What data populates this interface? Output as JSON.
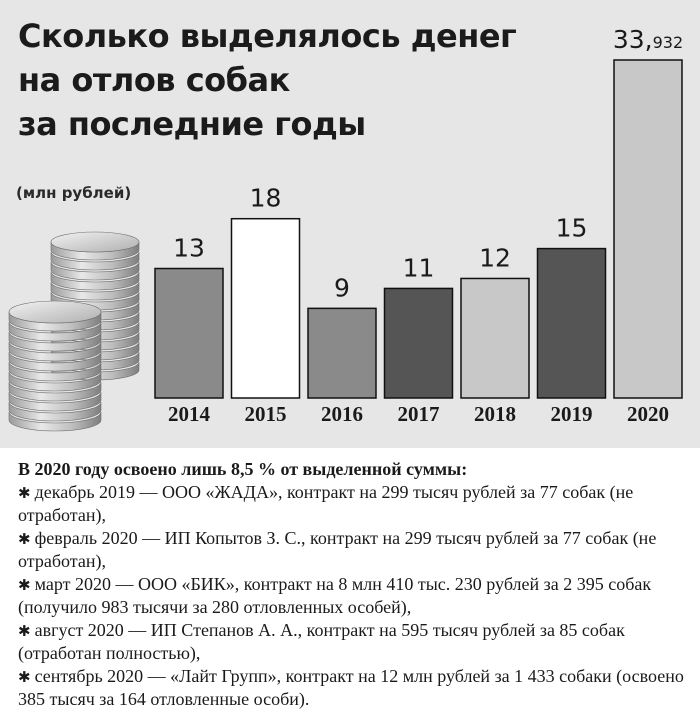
{
  "title_lines": [
    "Сколько выделялось денег",
    "на отлов собак",
    "за последние годы"
  ],
  "unit_label": "(млн рублей)",
  "chart_data": {
    "type": "bar",
    "title": "Сколько выделялось денег на отлов собак за последние годы",
    "ylabel": "(млн рублей)",
    "categories": [
      "2014",
      "2015",
      "2016",
      "2017",
      "2018",
      "2019",
      "2020"
    ],
    "values": [
      13,
      18,
      9,
      11,
      12,
      15,
      33.932
    ],
    "value_labels": [
      {
        "main": "13",
        "sub": ""
      },
      {
        "main": "18",
        "sub": ""
      },
      {
        "main": "9",
        "sub": ""
      },
      {
        "main": "11",
        "sub": ""
      },
      {
        "main": "12",
        "sub": ""
      },
      {
        "main": "15",
        "sub": ""
      },
      {
        "main": "33,",
        "sub": "932"
      }
    ],
    "bar_colors": [
      "#8a8a8a",
      "#ffffff",
      "#8a8a8a",
      "#555555",
      "#c8c8c8",
      "#555555",
      "#c8c8c8"
    ],
    "ylim": [
      0,
      34
    ],
    "grid": false,
    "legend": "none"
  },
  "notes": {
    "header": "В 2020 году освоено лишь 8,5 % от выделенной суммы:",
    "items": [
      "декабрь 2019 — ООО «ЖАДА», контракт на 299 тысяч рублей за 77 собак (не отработан),",
      "февраль 2020 — ИП Копытов З. С., контракт на 299 тысяч рублей за 77 собак (не отработан),",
      "март 2020 — ООО «БИК», контракт на 8 млн 410 тыс. 230 рублей за 2 395 собак (получило 983 тысячи за 280 отловленных особей),",
      "август 2020 — ИП Степанов А. А., контракт на 595 тысяч рублей за 85 собак (отработан полностью),",
      "сентябрь 2020 — «Лайт Групп», контракт на 12 млн рублей за 1 433 собаки (освоено 385 тысяч за 164 отловленные особи)."
    ]
  }
}
